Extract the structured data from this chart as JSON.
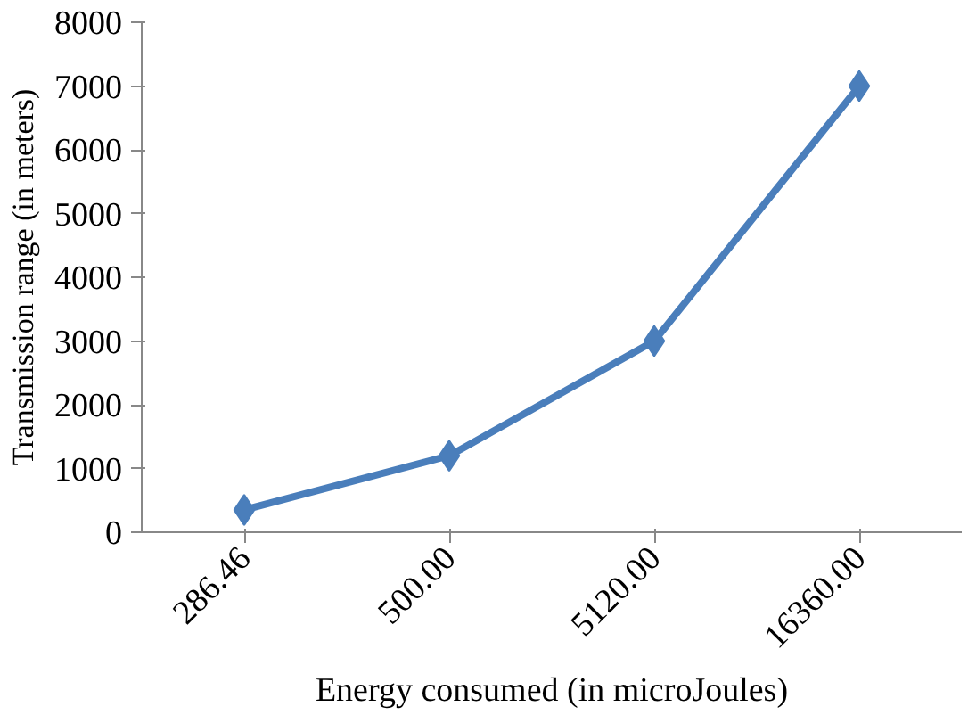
{
  "chart_data": {
    "type": "line",
    "xlabel": "Energy consumed (in microJoules)",
    "ylabel": "Transmission range (in meters)",
    "categories": [
      "286.46",
      "500.00",
      "5120.00",
      "16360.00"
    ],
    "series": [
      {
        "color": "#4a7ebb",
        "values": [
          350,
          1200,
          3000,
          7000
        ]
      }
    ],
    "ylim": [
      0,
      8000
    ],
    "yticks": [
      0,
      1000,
      2000,
      3000,
      4000,
      5000,
      6000,
      7000,
      8000
    ],
    "grid": false,
    "marker": "diamond",
    "line_style": "solid"
  }
}
